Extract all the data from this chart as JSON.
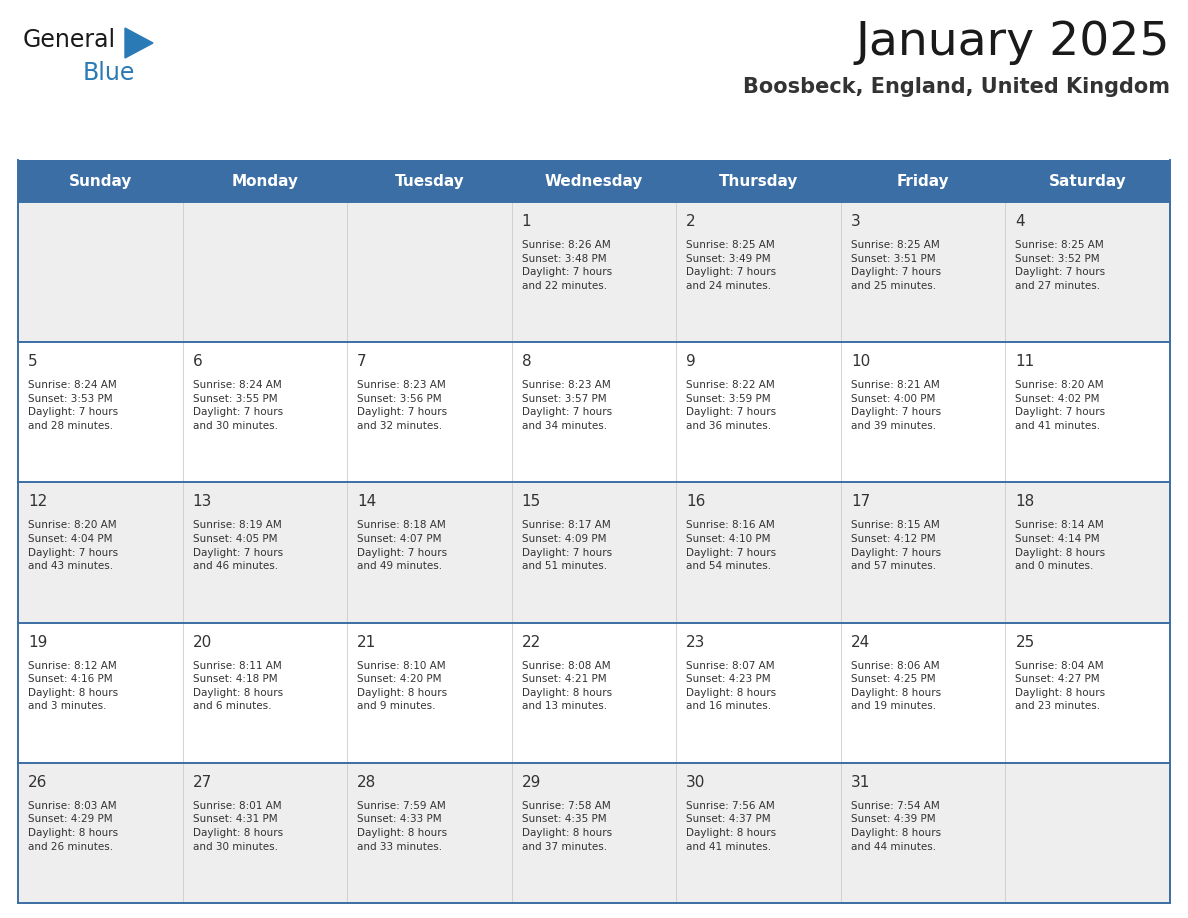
{
  "title": "January 2025",
  "subtitle": "Boosbeck, England, United Kingdom",
  "days_of_week": [
    "Sunday",
    "Monday",
    "Tuesday",
    "Wednesday",
    "Thursday",
    "Friday",
    "Saturday"
  ],
  "header_bg_color": "#3a6ea5",
  "header_text_color": "#ffffff",
  "cell_bg_white": "#ffffff",
  "cell_bg_gray": "#eeeeee",
  "cell_text_color": "#333333",
  "day_num_color": "#333333",
  "border_color": "#3a6ea5",
  "row_divider_color": "#5588bb",
  "title_color": "#1a1a1a",
  "subtitle_color": "#333333",
  "logo_color_general": "#1a1a1a",
  "logo_color_blue": "#2a7ab5",
  "logo_triangle_color": "#2a7ab5",
  "calendar_data": [
    [
      {
        "day": null,
        "text": ""
      },
      {
        "day": null,
        "text": ""
      },
      {
        "day": null,
        "text": ""
      },
      {
        "day": 1,
        "text": "Sunrise: 8:26 AM\nSunset: 3:48 PM\nDaylight: 7 hours\nand 22 minutes."
      },
      {
        "day": 2,
        "text": "Sunrise: 8:25 AM\nSunset: 3:49 PM\nDaylight: 7 hours\nand 24 minutes."
      },
      {
        "day": 3,
        "text": "Sunrise: 8:25 AM\nSunset: 3:51 PM\nDaylight: 7 hours\nand 25 minutes."
      },
      {
        "day": 4,
        "text": "Sunrise: 8:25 AM\nSunset: 3:52 PM\nDaylight: 7 hours\nand 27 minutes."
      }
    ],
    [
      {
        "day": 5,
        "text": "Sunrise: 8:24 AM\nSunset: 3:53 PM\nDaylight: 7 hours\nand 28 minutes."
      },
      {
        "day": 6,
        "text": "Sunrise: 8:24 AM\nSunset: 3:55 PM\nDaylight: 7 hours\nand 30 minutes."
      },
      {
        "day": 7,
        "text": "Sunrise: 8:23 AM\nSunset: 3:56 PM\nDaylight: 7 hours\nand 32 minutes."
      },
      {
        "day": 8,
        "text": "Sunrise: 8:23 AM\nSunset: 3:57 PM\nDaylight: 7 hours\nand 34 minutes."
      },
      {
        "day": 9,
        "text": "Sunrise: 8:22 AM\nSunset: 3:59 PM\nDaylight: 7 hours\nand 36 minutes."
      },
      {
        "day": 10,
        "text": "Sunrise: 8:21 AM\nSunset: 4:00 PM\nDaylight: 7 hours\nand 39 minutes."
      },
      {
        "day": 11,
        "text": "Sunrise: 8:20 AM\nSunset: 4:02 PM\nDaylight: 7 hours\nand 41 minutes."
      }
    ],
    [
      {
        "day": 12,
        "text": "Sunrise: 8:20 AM\nSunset: 4:04 PM\nDaylight: 7 hours\nand 43 minutes."
      },
      {
        "day": 13,
        "text": "Sunrise: 8:19 AM\nSunset: 4:05 PM\nDaylight: 7 hours\nand 46 minutes."
      },
      {
        "day": 14,
        "text": "Sunrise: 8:18 AM\nSunset: 4:07 PM\nDaylight: 7 hours\nand 49 minutes."
      },
      {
        "day": 15,
        "text": "Sunrise: 8:17 AM\nSunset: 4:09 PM\nDaylight: 7 hours\nand 51 minutes."
      },
      {
        "day": 16,
        "text": "Sunrise: 8:16 AM\nSunset: 4:10 PM\nDaylight: 7 hours\nand 54 minutes."
      },
      {
        "day": 17,
        "text": "Sunrise: 8:15 AM\nSunset: 4:12 PM\nDaylight: 7 hours\nand 57 minutes."
      },
      {
        "day": 18,
        "text": "Sunrise: 8:14 AM\nSunset: 4:14 PM\nDaylight: 8 hours\nand 0 minutes."
      }
    ],
    [
      {
        "day": 19,
        "text": "Sunrise: 8:12 AM\nSunset: 4:16 PM\nDaylight: 8 hours\nand 3 minutes."
      },
      {
        "day": 20,
        "text": "Sunrise: 8:11 AM\nSunset: 4:18 PM\nDaylight: 8 hours\nand 6 minutes."
      },
      {
        "day": 21,
        "text": "Sunrise: 8:10 AM\nSunset: 4:20 PM\nDaylight: 8 hours\nand 9 minutes."
      },
      {
        "day": 22,
        "text": "Sunrise: 8:08 AM\nSunset: 4:21 PM\nDaylight: 8 hours\nand 13 minutes."
      },
      {
        "day": 23,
        "text": "Sunrise: 8:07 AM\nSunset: 4:23 PM\nDaylight: 8 hours\nand 16 minutes."
      },
      {
        "day": 24,
        "text": "Sunrise: 8:06 AM\nSunset: 4:25 PM\nDaylight: 8 hours\nand 19 minutes."
      },
      {
        "day": 25,
        "text": "Sunrise: 8:04 AM\nSunset: 4:27 PM\nDaylight: 8 hours\nand 23 minutes."
      }
    ],
    [
      {
        "day": 26,
        "text": "Sunrise: 8:03 AM\nSunset: 4:29 PM\nDaylight: 8 hours\nand 26 minutes."
      },
      {
        "day": 27,
        "text": "Sunrise: 8:01 AM\nSunset: 4:31 PM\nDaylight: 8 hours\nand 30 minutes."
      },
      {
        "day": 28,
        "text": "Sunrise: 7:59 AM\nSunset: 4:33 PM\nDaylight: 8 hours\nand 33 minutes."
      },
      {
        "day": 29,
        "text": "Sunrise: 7:58 AM\nSunset: 4:35 PM\nDaylight: 8 hours\nand 37 minutes."
      },
      {
        "day": 30,
        "text": "Sunrise: 7:56 AM\nSunset: 4:37 PM\nDaylight: 8 hours\nand 41 minutes."
      },
      {
        "day": 31,
        "text": "Sunrise: 7:54 AM\nSunset: 4:39 PM\nDaylight: 8 hours\nand 44 minutes."
      },
      {
        "day": null,
        "text": ""
      }
    ]
  ]
}
